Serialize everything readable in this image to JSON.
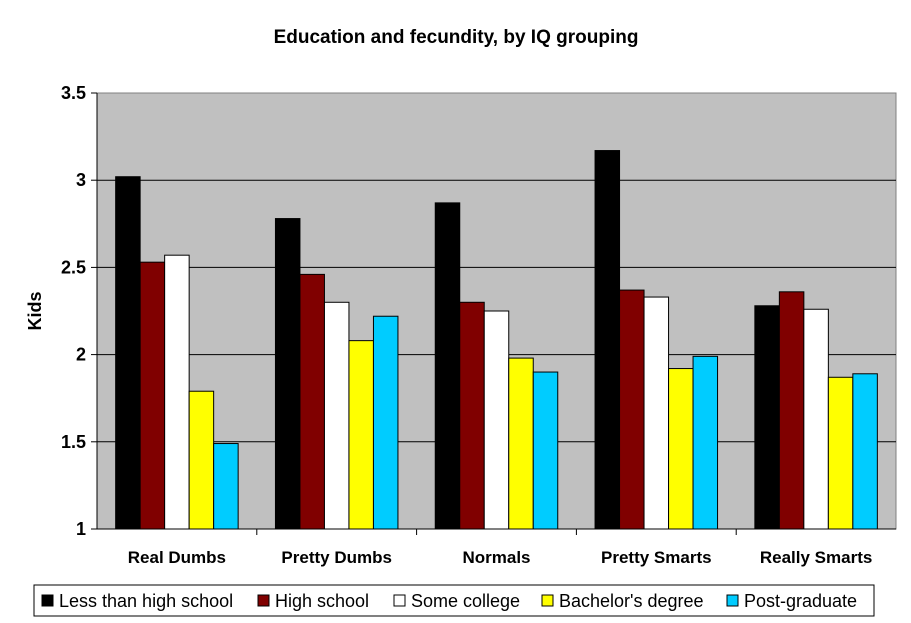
{
  "chart_data": {
    "type": "bar",
    "title": "Education and fecundity, by IQ grouping",
    "xlabel": "",
    "ylabel": "Kids",
    "ylim": [
      1,
      3.5
    ],
    "yticks": [
      "1",
      "1.5",
      "2",
      "2.5",
      "3",
      "3.5"
    ],
    "grid": true,
    "legend_position": "bottom",
    "categories": [
      "Real Dumbs",
      "Pretty Dumbs",
      "Normals",
      "Pretty Smarts",
      "Really Smarts"
    ],
    "series": [
      {
        "name": "Less than high school",
        "color": "#000000",
        "values": [
          3.02,
          2.78,
          2.87,
          3.17,
          2.28
        ]
      },
      {
        "name": "High school",
        "color": "#800000",
        "values": [
          2.53,
          2.46,
          2.3,
          2.37,
          2.36
        ]
      },
      {
        "name": "Some college",
        "color": "#ffffff",
        "values": [
          2.57,
          2.3,
          2.25,
          2.33,
          2.26
        ]
      },
      {
        "name": "Bachelor's degree",
        "color": "#ffff00",
        "values": [
          1.79,
          2.08,
          1.98,
          1.92,
          1.87
        ]
      },
      {
        "name": "Post-graduate",
        "color": "#00ccff",
        "values": [
          1.49,
          2.22,
          1.9,
          1.99,
          1.89
        ]
      }
    ],
    "plot_background": "#c0c0c0"
  }
}
